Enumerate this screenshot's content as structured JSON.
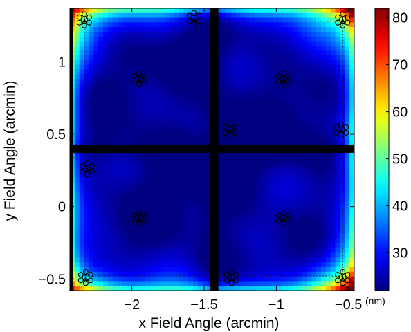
{
  "chart_data": {
    "type": "heatmap",
    "xlabel": "x Field Angle (arcmin)",
    "ylabel": "y Field Angle (arcmin)",
    "xlim": [
      -2.43,
      -0.46
    ],
    "ylim": [
      -0.58,
      1.37
    ],
    "x_ticks": [
      -2,
      -1.5,
      -1,
      -0.5
    ],
    "x_tick_labels": [
      "−2",
      "−1.5",
      "−1",
      "−0.5"
    ],
    "y_ticks": [
      -0.5,
      0,
      0.5,
      1
    ],
    "y_tick_labels": [
      "−0.5",
      "0",
      "0.5",
      "1"
    ],
    "colorbar": {
      "unit": "(nm)",
      "range": [
        22,
        82
      ],
      "ticks": [
        30,
        40,
        50,
        60,
        70,
        80
      ],
      "tick_labels": [
        "30",
        "40",
        "50",
        "60",
        "70",
        "80"
      ],
      "colormap": "jet"
    },
    "value_field": {
      "base": 28,
      "notes": "minimum (~22 nm) in panel interiors, higher near edges, maxima (~80 nm) at outer corners",
      "corner_hotspots": [
        {
          "x": -0.46,
          "y": 1.37,
          "peak": 80
        },
        {
          "x": -2.43,
          "y": 1.37,
          "peak": 70
        },
        {
          "x": -0.46,
          "y": -0.58,
          "peak": 82
        },
        {
          "x": -2.43,
          "y": -0.58,
          "peak": 62
        }
      ]
    },
    "dividers": [
      {
        "orientation": "vertical",
        "x": -1.43
      },
      {
        "orientation": "horizontal",
        "y": 0.4
      }
    ],
    "markers": [
      {
        "x": -2.33,
        "y": 1.29
      },
      {
        "x": -1.57,
        "y": 1.3
      },
      {
        "x": -0.54,
        "y": 1.29
      },
      {
        "x": -1.95,
        "y": 0.88
      },
      {
        "x": -0.95,
        "y": 0.88
      },
      {
        "x": -1.32,
        "y": 0.53
      },
      {
        "x": -0.55,
        "y": 0.53
      },
      {
        "x": -2.31,
        "y": 0.26
      },
      {
        "x": -1.95,
        "y": -0.08
      },
      {
        "x": -0.95,
        "y": -0.08
      },
      {
        "x": -2.32,
        "y": -0.49
      },
      {
        "x": -1.31,
        "y": -0.49
      },
      {
        "x": -0.54,
        "y": -0.49
      }
    ],
    "dotted_frame": {
      "x": [
        -2.33,
        -0.54
      ],
      "y": [
        -0.48,
        1.28
      ]
    }
  }
}
